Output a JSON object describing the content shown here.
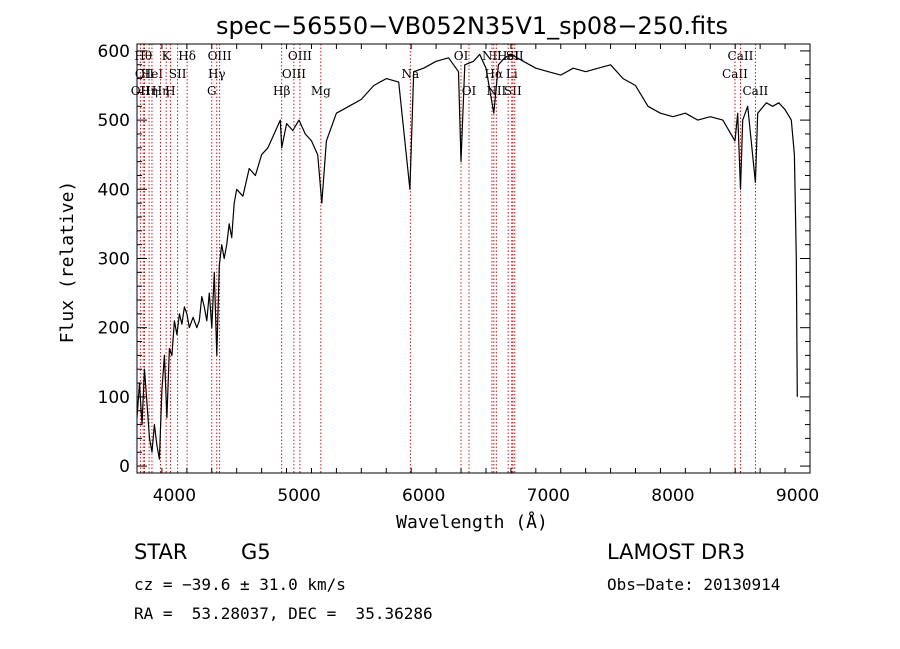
{
  "chart_data": {
    "type": "line",
    "title": "spec−56550−VB052N35V1_sp08−250.fits",
    "xlabel": "Wavelength (Å)",
    "ylabel": "Flux (relative)",
    "xlim": [
      3700,
      9100
    ],
    "ylim": [
      -10,
      610
    ],
    "x_ticks": [
      4000,
      5000,
      6000,
      7000,
      8000,
      9000
    ],
    "y_ticks": [
      0,
      100,
      200,
      300,
      400,
      500,
      600
    ],
    "grid": false,
    "series": [
      {
        "points": [
          [
            3700,
            70
          ],
          [
            3720,
            120
          ],
          [
            3740,
            60
          ],
          [
            3760,
            140
          ],
          [
            3780,
            90
          ],
          [
            3800,
            40
          ],
          [
            3820,
            20
          ],
          [
            3840,
            60
          ],
          [
            3860,
            30
          ],
          [
            3880,
            10
          ],
          [
            3900,
            110
          ],
          [
            3920,
            160
          ],
          [
            3940,
            70
          ],
          [
            3960,
            170
          ],
          [
            3980,
            160
          ],
          [
            4000,
            210
          ],
          [
            4020,
            190
          ],
          [
            4040,
            220
          ],
          [
            4060,
            205
          ],
          [
            4080,
            230
          ],
          [
            4100,
            220
          ],
          [
            4120,
            200
          ],
          [
            4150,
            215
          ],
          [
            4180,
            200
          ],
          [
            4200,
            210
          ],
          [
            4220,
            245
          ],
          [
            4240,
            230
          ],
          [
            4260,
            210
          ],
          [
            4280,
            250
          ],
          [
            4300,
            200
          ],
          [
            4320,
            280
          ],
          [
            4340,
            160
          ],
          [
            4360,
            290
          ],
          [
            4380,
            320
          ],
          [
            4400,
            300
          ],
          [
            4420,
            320
          ],
          [
            4440,
            350
          ],
          [
            4460,
            330
          ],
          [
            4480,
            380
          ],
          [
            4500,
            400
          ],
          [
            4550,
            390
          ],
          [
            4600,
            430
          ],
          [
            4650,
            420
          ],
          [
            4700,
            450
          ],
          [
            4750,
            460
          ],
          [
            4800,
            480
          ],
          [
            4850,
            500
          ],
          [
            4861,
            460
          ],
          [
            4900,
            495
          ],
          [
            4950,
            485
          ],
          [
            5000,
            500
          ],
          [
            5050,
            480
          ],
          [
            5100,
            470
          ],
          [
            5150,
            450
          ],
          [
            5183,
            380
          ],
          [
            5220,
            470
          ],
          [
            5300,
            510
          ],
          [
            5400,
            520
          ],
          [
            5500,
            530
          ],
          [
            5600,
            550
          ],
          [
            5700,
            560
          ],
          [
            5800,
            555
          ],
          [
            5890,
            400
          ],
          [
            5920,
            570
          ],
          [
            6000,
            575
          ],
          [
            6100,
            585
          ],
          [
            6200,
            590
          ],
          [
            6280,
            570
          ],
          [
            6300,
            440
          ],
          [
            6330,
            580
          ],
          [
            6400,
            585
          ],
          [
            6450,
            595
          ],
          [
            6500,
            575
          ],
          [
            6563,
            510
          ],
          [
            6600,
            580
          ],
          [
            6650,
            590
          ],
          [
            6700,
            595
          ],
          [
            6800,
            585
          ],
          [
            6900,
            575
          ],
          [
            7000,
            570
          ],
          [
            7100,
            565
          ],
          [
            7200,
            575
          ],
          [
            7300,
            570
          ],
          [
            7400,
            575
          ],
          [
            7500,
            580
          ],
          [
            7600,
            560
          ],
          [
            7700,
            550
          ],
          [
            7800,
            520
          ],
          [
            7900,
            510
          ],
          [
            8000,
            505
          ],
          [
            8100,
            510
          ],
          [
            8200,
            500
          ],
          [
            8300,
            505
          ],
          [
            8400,
            500
          ],
          [
            8498,
            470
          ],
          [
            8520,
            510
          ],
          [
            8542,
            400
          ],
          [
            8560,
            500
          ],
          [
            8600,
            520
          ],
          [
            8662,
            410
          ],
          [
            8680,
            510
          ],
          [
            8750,
            525
          ],
          [
            8800,
            520
          ],
          [
            8850,
            525
          ],
          [
            8900,
            515
          ],
          [
            8950,
            500
          ],
          [
            8975,
            450
          ],
          [
            8990,
            300
          ],
          [
            8998,
            100
          ]
        ]
      }
    ],
    "line_markers": [
      {
        "wl": 3727,
        "label": "OII",
        "row": 2
      },
      {
        "wl": 3750,
        "label": "Hθ",
        "row": 0
      },
      {
        "wl": 3760,
        "label": "OII",
        "row": 1
      },
      {
        "wl": 3797,
        "label": "Hη",
        "row": 2
      },
      {
        "wl": 3820,
        "label": "HeI",
        "row": 1
      },
      {
        "wl": 3889,
        "label": "Hη",
        "row": 2
      },
      {
        "wl": 3934,
        "label": "K",
        "row": 0
      },
      {
        "wl": 3968,
        "label": "H",
        "row": 2
      },
      {
        "wl": 4026,
        "label": "SII",
        "row": 1
      },
      {
        "wl": 4102,
        "label": "Hδ",
        "row": 0
      },
      {
        "wl": 4300,
        "label": "G",
        "row": 2
      },
      {
        "wl": 4340,
        "label": "Hγ",
        "row": 1
      },
      {
        "wl": 4363,
        "label": "OIII",
        "row": 0
      },
      {
        "wl": 4861,
        "label": "Hβ",
        "row": 2
      },
      {
        "wl": 4959,
        "label": "OIII",
        "row": 1
      },
      {
        "wl": 5007,
        "label": "OIII",
        "row": 0
      },
      {
        "wl": 5175,
        "label": "Mg",
        "row": 2
      },
      {
        "wl": 5893,
        "label": "Na",
        "row": 1
      },
      {
        "wl": 6300,
        "label": "OI",
        "row": 0
      },
      {
        "wl": 6364,
        "label": "OI",
        "row": 2
      },
      {
        "wl": 6548,
        "label": "NII",
        "row": 0
      },
      {
        "wl": 6563,
        "label": "Hα",
        "row": 1
      },
      {
        "wl": 6583,
        "label": "NII",
        "row": 2
      },
      {
        "wl": 6678,
        "label": "HeI",
        "row": 0
      },
      {
        "wl": 6707,
        "label": "Li",
        "row": 1
      },
      {
        "wl": 6716,
        "label": "SII",
        "row": 2
      },
      {
        "wl": 6731,
        "label": "SII",
        "row": 0
      },
      {
        "wl": 8498,
        "label": "CaII",
        "row": 1
      },
      {
        "wl": 8542,
        "label": "CaII",
        "row": 0
      },
      {
        "wl": 8662,
        "label": "CaII",
        "row": 2
      }
    ]
  },
  "info": {
    "object_type": "STAR",
    "subclass": "G5",
    "survey": "LAMOST DR3",
    "cz": "cz = −39.6 ± 31.0 km/s",
    "obs_date": "Obs−Date: 20130914",
    "coords": "RA =  53.28037, DEC =  35.36286"
  }
}
